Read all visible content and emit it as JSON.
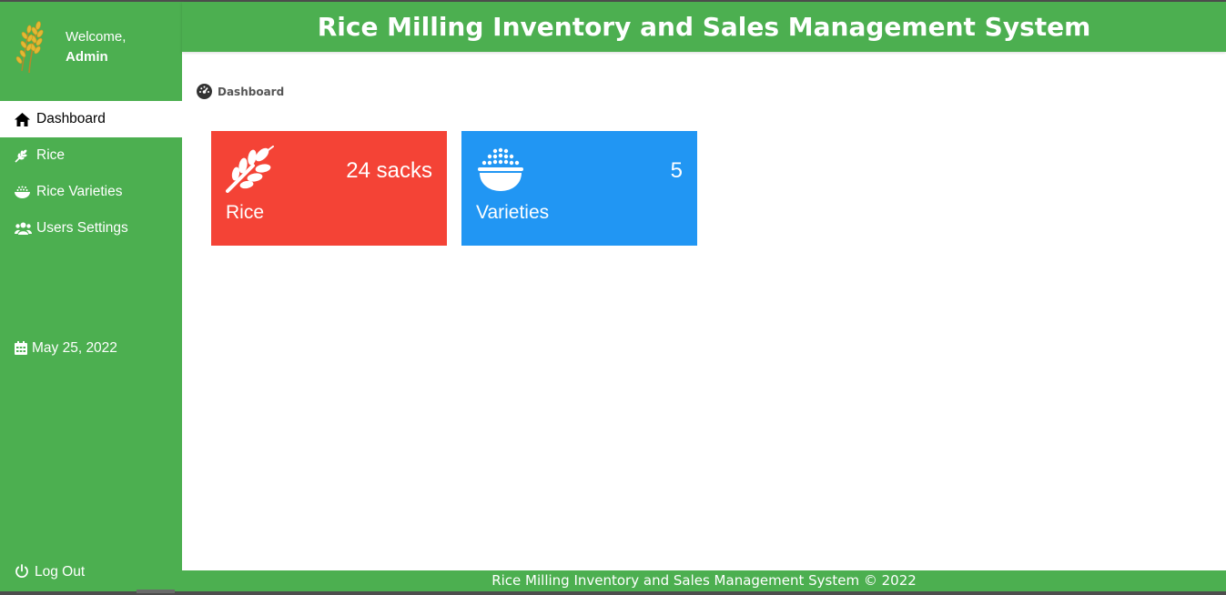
{
  "app": {
    "title": "Rice Milling Inventory and Sales Management System",
    "footer": "Rice Milling Inventory and Sales Management System © 2022"
  },
  "sidebar": {
    "welcome": "Welcome,",
    "user": "Admin",
    "items": [
      {
        "label": "Dashboard",
        "icon": "home-icon",
        "active": true
      },
      {
        "label": "Rice",
        "icon": "wheat-icon"
      },
      {
        "label": "Rice Varieties",
        "icon": "bowl-icon"
      },
      {
        "label": "Users Settings",
        "icon": "users-icon"
      }
    ],
    "date": "May 25, 2022",
    "logout": "Log Out"
  },
  "breadcrumb": {
    "label": "Dashboard",
    "icon": "gauge-icon"
  },
  "cards": [
    {
      "label": "Rice",
      "value": "24 sacks",
      "icon": "wheat-icon",
      "color": "#f44336"
    },
    {
      "label": "Varieties",
      "value": "5",
      "icon": "bowl-rice-icon",
      "color": "#2196f3"
    }
  ],
  "colors": {
    "sidebar": "#4caf50",
    "header": "#4caf50",
    "card_rice": "#f44336",
    "card_varieties": "#2196f3"
  }
}
